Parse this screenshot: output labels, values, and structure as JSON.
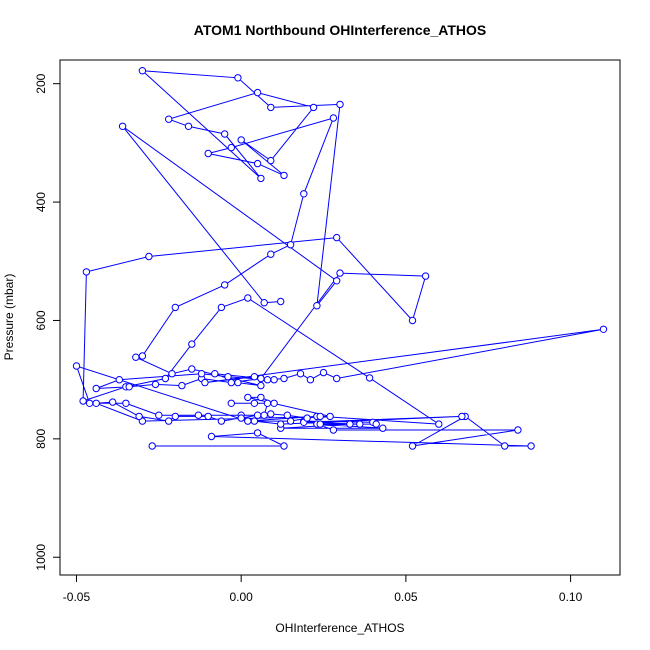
{
  "chart_data": {
    "type": "line",
    "title": "ATOM1 Northbound OHInterference_ATHOS",
    "xlabel": "OHInterference_ATHOS",
    "ylabel": "Pressure (mbar)",
    "xlim": [
      -0.055,
      0.115
    ],
    "ylim": [
      1030,
      160
    ],
    "y_reversed": true,
    "grid": false,
    "x_ticks": [
      -0.05,
      0.0,
      0.05,
      0.1
    ],
    "x_tick_labels": [
      "-0.05",
      "0.00",
      "0.05",
      "0.10"
    ],
    "y_ticks": [
      200,
      400,
      600,
      800,
      1000
    ],
    "y_tick_labels": [
      "200",
      "400",
      "600",
      "800",
      "1000"
    ],
    "series_color": "#0000ff",
    "marker": "open-circle",
    "series": [
      {
        "x": [
          -0.027,
          0.013,
          0.005,
          -0.009,
          0.088,
          0.08,
          0.068,
          0.052,
          0.084,
          0.028,
          0.023,
          0.043,
          0.012,
          0.033,
          0.019,
          0.04,
          0.041,
          0.024,
          0.036,
          0.019,
          0.067,
          0.012,
          0.004,
          0.015,
          0.023,
          0.002,
          -0.05,
          -0.046,
          -0.035,
          -0.025,
          -0.013,
          0.0,
          0.007,
          0.008,
          0.004,
          -0.003,
          0.01,
          0.006,
          0.002,
          0.027,
          -0.03,
          -0.044,
          -0.039,
          -0.031,
          -0.022,
          -0.02,
          -0.01,
          -0.006,
          0.0,
          0.005,
          0.009,
          0.014,
          0.02,
          0.024,
          0.06,
          0.039,
          0.002,
          -0.006,
          -0.015,
          -0.023,
          -0.035,
          -0.048,
          -0.047,
          -0.028,
          0.029,
          0.052,
          0.056,
          0.03,
          0.006,
          -0.003,
          -0.012,
          -0.018,
          -0.026,
          -0.034,
          -0.044,
          -0.037,
          -0.012,
          -0.004,
          0.008,
          0.013,
          0.018,
          0.021,
          0.025,
          0.029,
          0.11,
          -0.011,
          0.004,
          0.01,
          -0.008,
          -0.001,
          0.006,
          -0.015,
          -0.021,
          -0.032,
          -0.03,
          -0.02,
          -0.005,
          0.009,
          0.015,
          0.019,
          0.028,
          -0.003,
          -0.01,
          0.005,
          0.013,
          0.0,
          0.009,
          0.022,
          0.005,
          -0.022,
          -0.016,
          -0.005,
          0.006,
          -0.03,
          -0.001,
          0.009,
          0.03,
          0.023,
          0.029,
          -0.036,
          0.007,
          0.012
        ],
        "y": [
          812,
          812,
          790,
          796,
          812,
          812,
          762,
          812,
          785,
          785,
          775,
          782,
          782,
          775,
          770,
          772,
          775,
          775,
          775,
          772,
          762,
          775,
          770,
          770,
          762,
          770,
          677,
          740,
          740,
          760,
          760,
          760,
          760,
          740,
          740,
          740,
          740,
          730,
          730,
          762,
          770,
          740,
          738,
          762,
          770,
          762,
          762,
          770,
          765,
          760,
          758,
          760,
          765,
          762,
          775,
          697,
          562,
          578,
          640,
          698,
          712,
          736,
          518,
          492,
          460,
          600,
          525,
          520,
          698,
          705,
          698,
          710,
          708,
          712,
          715,
          700,
          690,
          695,
          700,
          698,
          690,
          700,
          688,
          698,
          615,
          705,
          695,
          700,
          690,
          705,
          710,
          682,
          690,
          662,
          660,
          578,
          540,
          488,
          472,
          386,
          258,
          308,
          318,
          335,
          355,
          295,
          330,
          240,
          215,
          260,
          272,
          285,
          360,
          178,
          190,
          240,
          235,
          575,
          533,
          272,
          570,
          568
        ]
      }
    ]
  }
}
